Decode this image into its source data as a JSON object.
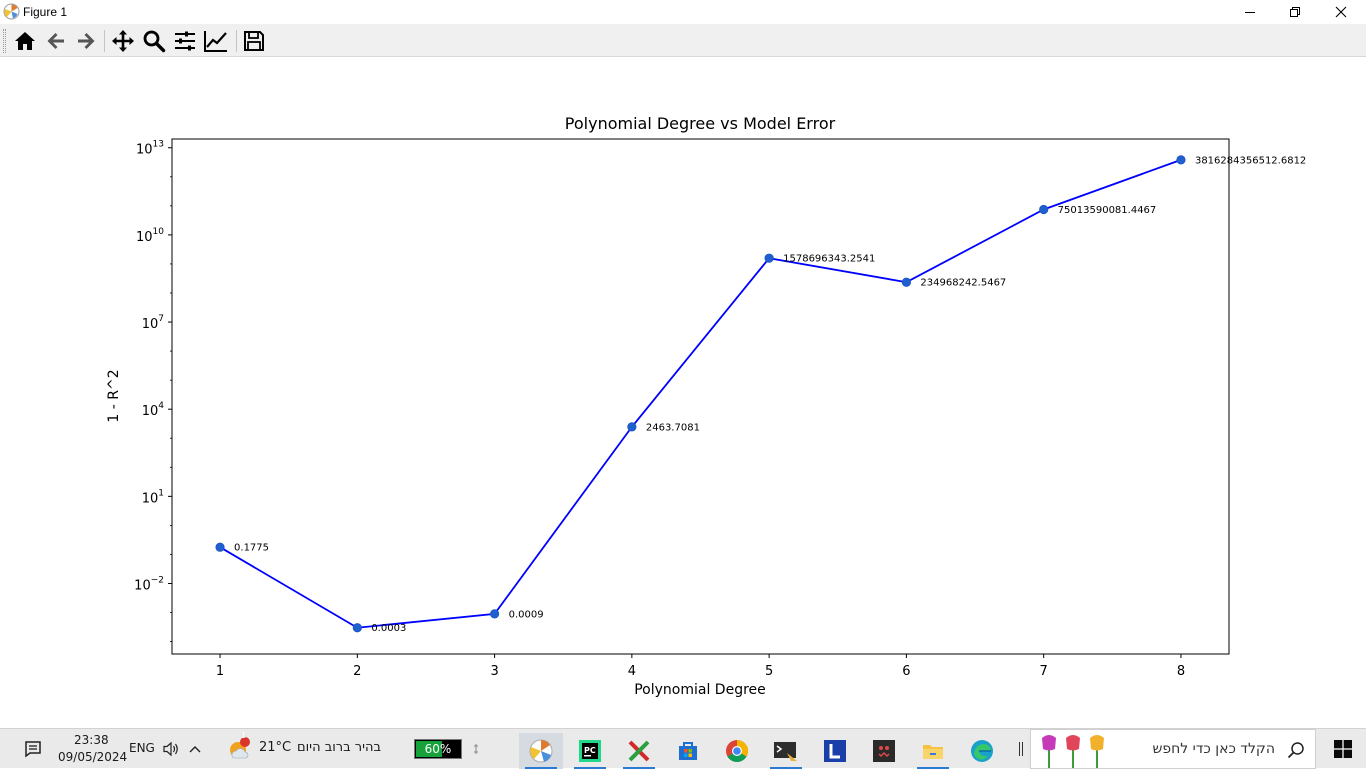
{
  "window": {
    "title": "Figure 1"
  },
  "toolbar": {
    "tools": [
      "home-icon",
      "back-arrow-icon",
      "forward-arrow-icon",
      "pan-icon",
      "zoom-icon",
      "subplots-icon",
      "edit-axis-icon",
      "save-icon"
    ]
  },
  "chart_data": {
    "type": "line",
    "title": "Polynomial Degree vs Model Error",
    "xlabel": "Polynomial Degree",
    "ylabel": "1 - R^2",
    "yscale": "log",
    "x": [
      1,
      2,
      3,
      4,
      5,
      6,
      7,
      8
    ],
    "values": [
      0.1775,
      0.0003,
      0.0009,
      2463.7081,
      1578696343.2541,
      234968242.5467,
      75013590081.4467,
      3816284356512.681
    ],
    "point_labels": [
      "0.1775",
      "0.0003",
      "0.0009",
      "2463.7081",
      "1578696343.2541",
      "234968242.5467",
      "75013590081.4467",
      "3816284356512.6812"
    ],
    "xticks": [
      "1",
      "2",
      "3",
      "4",
      "5",
      "6",
      "7",
      "8"
    ],
    "yticks": [
      {
        "value": 0.01,
        "mantissa": "10",
        "exp": "−2"
      },
      {
        "value": 10.0,
        "mantissa": "10",
        "exp": "1"
      },
      {
        "value": 10000.0,
        "mantissa": "10",
        "exp": "4"
      },
      {
        "value": 10000000.0,
        "mantissa": "10",
        "exp": "7"
      },
      {
        "value": 10000000000.0,
        "mantissa": "10",
        "exp": "10"
      },
      {
        "value": 10000000000000.0,
        "mantissa": "10",
        "exp": "13"
      }
    ],
    "xlim": [
      0.65,
      8.35
    ],
    "ylim": [
      3.74e-05,
      20000000000000
    ],
    "grid": false,
    "line_color": "#0000ff",
    "marker_color": "#1f5fd0"
  },
  "taskbar": {
    "time": "23:38",
    "date": "09/05/2024",
    "language": "ENG",
    "weather_temp": "21°C",
    "weather_text": "בהיר ברוב היום",
    "weather_badge": "1",
    "battery": "60%",
    "battery_level": 0.6,
    "search_placeholder": "הקלד כאן כדי לחפש"
  }
}
